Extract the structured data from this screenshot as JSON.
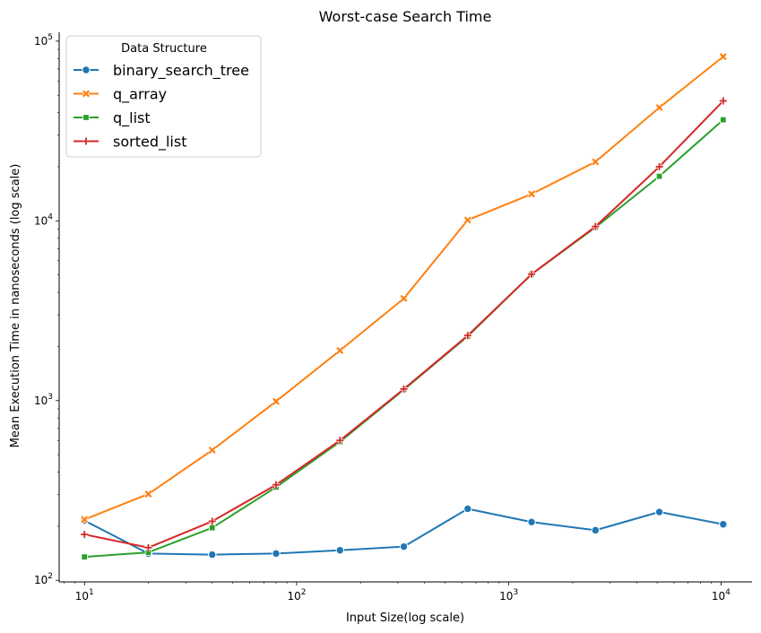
{
  "chart_data": {
    "type": "line",
    "title": "Worst-case Search Time",
    "xlabel": "Input Size(log scale)",
    "ylabel": "Mean Execution Time in nanoseconds (log scale)",
    "xscale": "log",
    "yscale": "log",
    "xlim": [
      7.6,
      14000
    ],
    "ylim": [
      98,
      112000
    ],
    "x_ticks": [
      {
        "value": 10,
        "base": "10",
        "exp": "1"
      },
      {
        "value": 100,
        "base": "10",
        "exp": "2"
      },
      {
        "value": 1000,
        "base": "10",
        "exp": "3"
      },
      {
        "value": 10000,
        "base": "10",
        "exp": "4"
      }
    ],
    "y_ticks": [
      {
        "value": 100,
        "base": "10",
        "exp": "2"
      },
      {
        "value": 1000,
        "base": "10",
        "exp": "3"
      },
      {
        "value": 10000,
        "base": "10",
        "exp": "4"
      },
      {
        "value": 100000,
        "base": "10",
        "exp": "5"
      }
    ],
    "grid": false,
    "legend": {
      "title": "Data Structure",
      "position": "top-left"
    },
    "x": [
      10,
      20,
      40,
      80,
      160,
      320,
      640,
      1280,
      2560,
      5120,
      10240
    ],
    "series": [
      {
        "name": "binary_search_tree",
        "color": "#1f77b4",
        "marker": "circle",
        "values": [
          215,
          141,
          139,
          141,
          147,
          154,
          250,
          211,
          190,
          240,
          205
        ]
      },
      {
        "name": "q_array",
        "color": "#ff7f0e",
        "marker": "x",
        "values": [
          218,
          302,
          530,
          990,
          1900,
          3700,
          10100,
          14100,
          21300,
          42700,
          82000
        ]
      },
      {
        "name": "q_list",
        "color": "#2ca02c",
        "marker": "square",
        "values": [
          135,
          143,
          196,
          330,
          590,
          1150,
          2280,
          5050,
          9200,
          17700,
          36500
        ]
      },
      {
        "name": "sorted_list",
        "color": "#d62728",
        "marker": "plus",
        "values": [
          180,
          152,
          213,
          340,
          600,
          1160,
          2300,
          5050,
          9300,
          20000,
          46500
        ]
      }
    ]
  }
}
